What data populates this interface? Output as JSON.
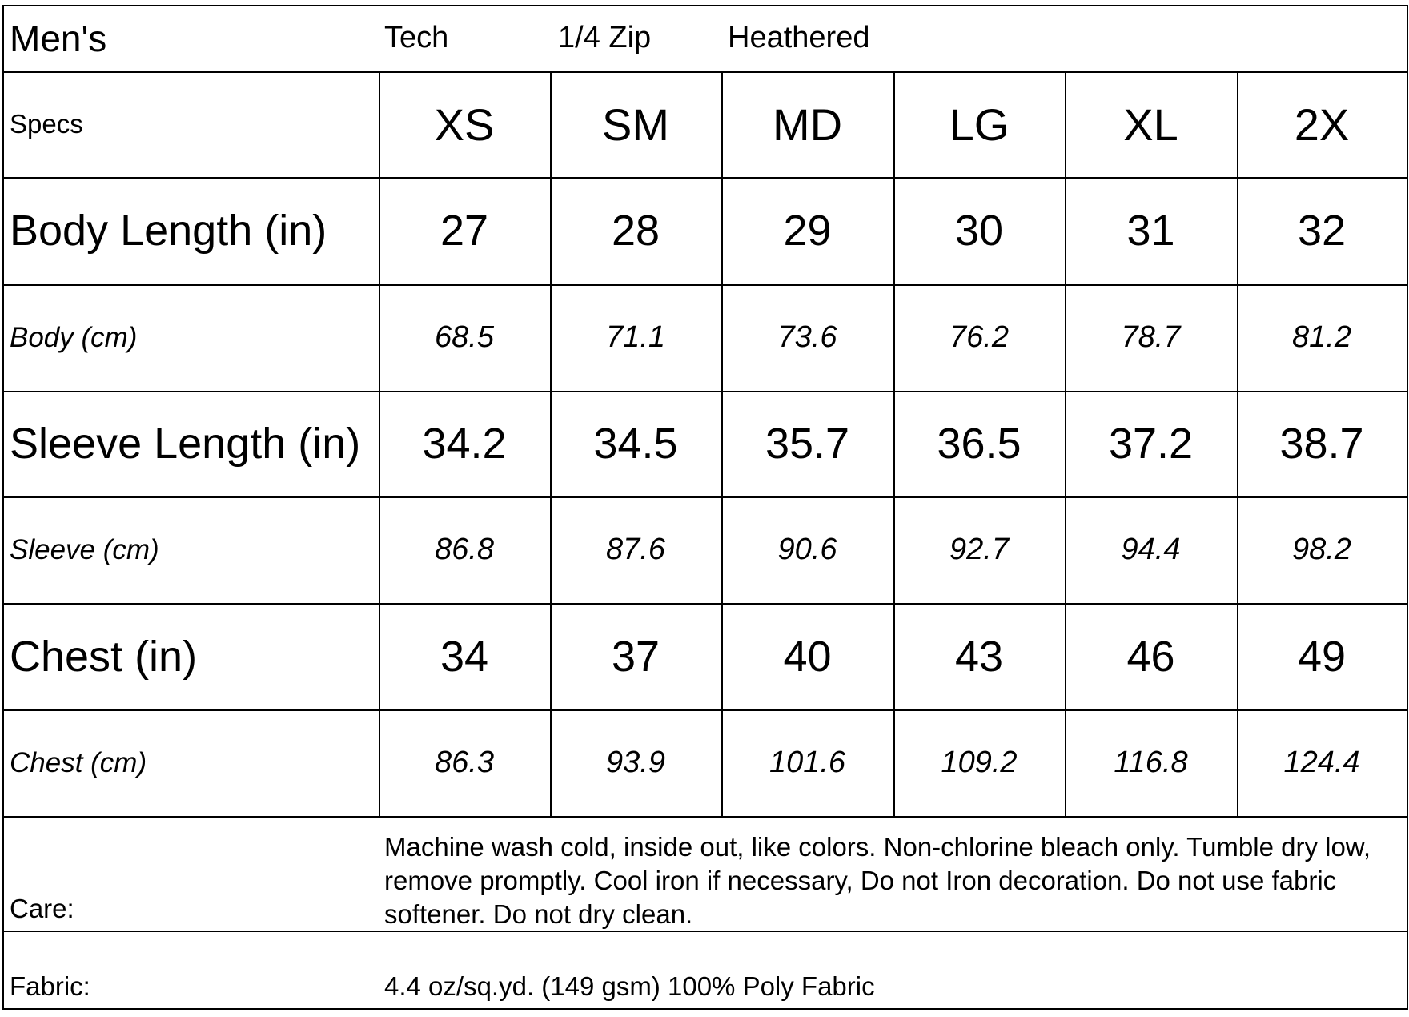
{
  "header": {
    "title": "Men's",
    "tags": [
      "Tech",
      "1/4 Zip",
      "Heathered"
    ]
  },
  "table": {
    "columns": [
      "Specs",
      "XS",
      "SM",
      "MD",
      "LG",
      "XL",
      "2X"
    ],
    "rows": [
      {
        "label": "Body Length (in)",
        "values": [
          27,
          28,
          29,
          30,
          31,
          32
        ]
      },
      {
        "label": "Body (cm)",
        "values": [
          68.5,
          71.1,
          73.6,
          76.2,
          78.7,
          81.2
        ]
      },
      {
        "label": "Sleeve Length (in)",
        "values": [
          34.2,
          34.5,
          35.7,
          36.5,
          37.2,
          38.7
        ]
      },
      {
        "label": "Sleeve (cm)",
        "values": [
          86.8,
          87.6,
          90.6,
          92.7,
          94.4,
          98.2
        ]
      },
      {
        "label": "Chest (in)",
        "values": [
          34,
          37,
          40,
          43,
          46,
          49
        ]
      },
      {
        "label": "Chest (cm)",
        "values": [
          86.3,
          93.9,
          101.6,
          109.2,
          116.8,
          124.4
        ]
      }
    ]
  },
  "care": {
    "label": "Care:",
    "text": "Machine wash cold, inside out, like colors. Non-chlorine bleach only. Tumble dry low, remove promptly. Cool iron if necessary, Do not Iron decoration. Do not use fabric softener. Do not dry clean."
  },
  "fabric": {
    "label": "Fabric:",
    "text": "4.4 oz/sq.yd. (149 gsm) 100% Poly Fabric"
  }
}
